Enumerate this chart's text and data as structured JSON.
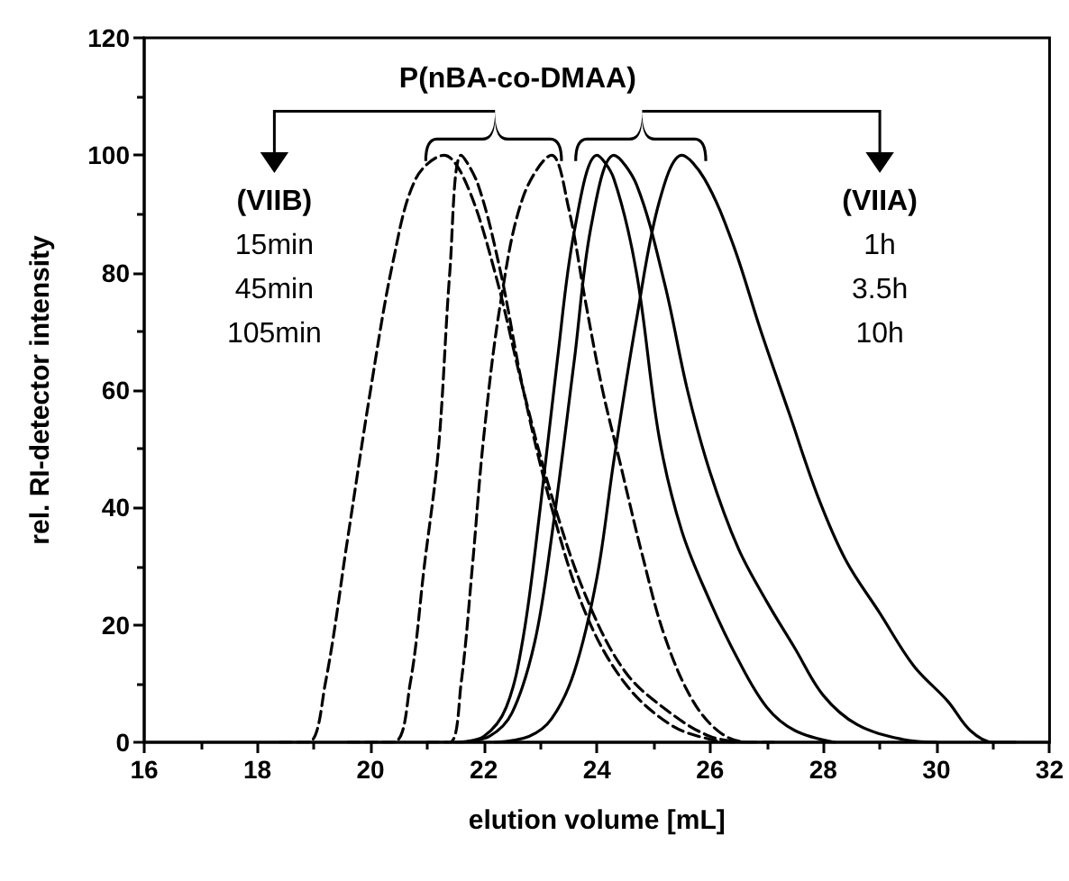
{
  "chart_data": {
    "type": "line",
    "xlabel": "elution volume [mL]",
    "ylabel": "rel. RI-detector intensity",
    "annotations": [
      "P(nBA-co-DMAA)",
      "(VIIB)",
      "15min",
      "45min",
      "105min",
      "(VIIA)",
      "1h",
      "3.5h",
      "10h"
    ],
    "xlim": [
      16,
      32
    ],
    "xticks": [
      16,
      18,
      20,
      22,
      24,
      26,
      28,
      30,
      32
    ],
    "ylim": [
      0,
      120
    ],
    "yticks": [
      0,
      20,
      40,
      60,
      80,
      100,
      120
    ],
    "grid": false,
    "marker": "none",
    "series": [
      {
        "color": "#000000",
        "line_style": "dashed",
        "x": [
          18.4,
          18.9,
          19.2,
          19.6,
          20.0,
          20.4,
          20.8,
          21.3,
          21.7,
          22.2,
          22.7,
          23.2,
          23.8,
          24.5,
          25.3,
          26.0,
          26.6
        ],
        "values": [
          0,
          0,
          10,
          35,
          60,
          82,
          96,
          100,
          95,
          80,
          60,
          42,
          25,
          12,
          5,
          1,
          0
        ]
      },
      {
        "color": "#000000",
        "line_style": "dashed",
        "x": [
          19.6,
          20.4,
          20.7,
          20.95,
          21.2,
          21.4,
          21.6,
          21.9,
          22.3,
          22.7,
          23.2,
          23.8,
          24.5,
          25.3,
          26.0,
          26.5
        ],
        "values": [
          0,
          0,
          10,
          30,
          50,
          80,
          100,
          95,
          80,
          60,
          40,
          22,
          10,
          3,
          0.5,
          0
        ]
      },
      {
        "color": "#000000",
        "line_style": "dashed",
        "x": [
          21.0,
          21.4,
          21.6,
          21.8,
          22.0,
          22.3,
          22.7,
          23.2,
          23.5,
          23.8,
          24.1,
          24.4,
          24.8,
          25.2,
          25.7,
          26.2,
          26.7,
          27.2
        ],
        "values": [
          0,
          0,
          10,
          30,
          52,
          75,
          93,
          100,
          91,
          75,
          60,
          48,
          32,
          18,
          7,
          1.5,
          0,
          0
        ]
      },
      {
        "color": "#000000",
        "line_style": "solid",
        "x": [
          21.5,
          22.0,
          22.4,
          22.7,
          23.0,
          23.3,
          23.6,
          24.0,
          24.3,
          24.7,
          25.1,
          25.5,
          26.0,
          26.5,
          27.0,
          27.5,
          28.2
        ],
        "values": [
          0,
          1,
          6,
          18,
          40,
          65,
          87,
          100,
          96,
          80,
          52,
          36,
          24,
          14,
          6,
          2,
          0
        ]
      },
      {
        "color": "#000000",
        "line_style": "solid",
        "x": [
          21.6,
          22.1,
          22.5,
          22.9,
          23.2,
          23.6,
          23.9,
          24.3,
          24.7,
          25.2,
          25.6,
          26.0,
          26.5,
          27.0,
          27.5,
          28.0,
          28.6,
          29.4,
          30.0
        ],
        "values": [
          0,
          1,
          5,
          17,
          35,
          65,
          88,
          100,
          95,
          78,
          60,
          46,
          33,
          24,
          16,
          8,
          3,
          0.5,
          0
        ]
      },
      {
        "color": "#000000",
        "line_style": "solid",
        "x": [
          22.2,
          22.8,
          23.2,
          23.6,
          24.0,
          24.3,
          24.7,
          25.1,
          25.5,
          25.9,
          26.4,
          26.9,
          27.4,
          27.9,
          28.4,
          29.0,
          29.6,
          30.2,
          30.6,
          31.0,
          31.4
        ],
        "values": [
          0,
          1,
          4,
          12,
          28,
          48,
          72,
          92,
          100,
          96,
          85,
          70,
          56,
          42,
          31,
          22,
          13,
          7,
          2,
          0,
          0
        ]
      }
    ]
  }
}
